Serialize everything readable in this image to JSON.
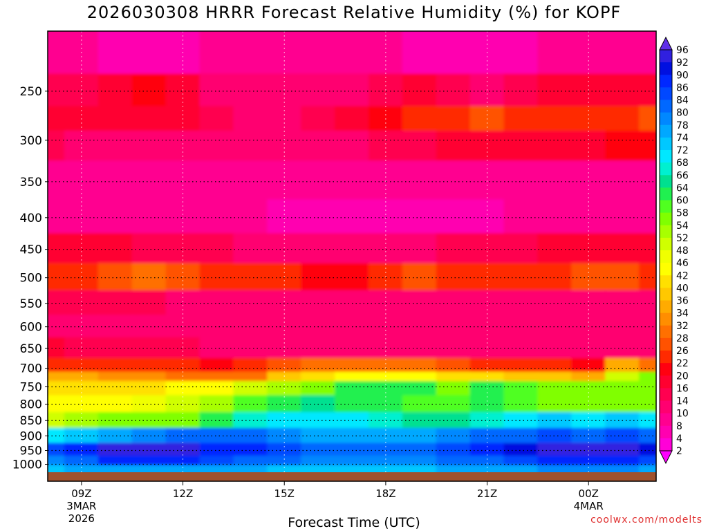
{
  "title": "2026030308 HRRR Forecast Relative Humidity (%) for KOPF",
  "credit": "coolwx.com/modelts",
  "chart_data": {
    "type": "heatmap",
    "title": "2026030308 HRRR Forecast Relative Humidity (%) for KOPF",
    "xlabel": "Forecast Time (UTC)",
    "ylabel": "",
    "x_ticks": [
      {
        "hour": 9,
        "label": "09Z",
        "sub1": "3MAR",
        "sub2": "2026"
      },
      {
        "hour": 12,
        "label": "12Z",
        "sub1": "",
        "sub2": ""
      },
      {
        "hour": 15,
        "label": "15Z",
        "sub1": "",
        "sub2": ""
      },
      {
        "hour": 18,
        "label": "18Z",
        "sub1": "",
        "sub2": ""
      },
      {
        "hour": 21,
        "label": "21Z",
        "sub1": "",
        "sub2": ""
      },
      {
        "hour": 24,
        "label": "00Z",
        "sub1": "4MAR",
        "sub2": ""
      }
    ],
    "xlim": [
      8.0,
      26.0
    ],
    "y_ticks": [
      250,
      300,
      350,
      400,
      450,
      500,
      550,
      600,
      650,
      700,
      750,
      800,
      850,
      900,
      950,
      1000
    ],
    "ylim_hPa": [
      1030,
      200
    ],
    "y_scale": "log-pressure",
    "grid": "dotted",
    "colorbar_ticks": [
      2,
      4,
      8,
      10,
      14,
      16,
      20,
      22,
      26,
      28,
      32,
      34,
      36,
      40,
      42,
      46,
      48,
      52,
      54,
      58,
      60,
      64,
      66,
      68,
      72,
      74,
      78,
      80,
      84,
      86,
      90,
      92,
      96
    ],
    "colorbar_colors": [
      "#ff00ff",
      "#ff00d8",
      "#ff00b0",
      "#ff0090",
      "#ff0070",
      "#ff0050",
      "#ff0030",
      "#ff0010",
      "#ff2a00",
      "#ff5200",
      "#ff7000",
      "#ff8e00",
      "#ffab00",
      "#ffc800",
      "#ffe000",
      "#ffff00",
      "#f0ff00",
      "#d0ff00",
      "#a8ff00",
      "#80ff00",
      "#50ff20",
      "#20f050",
      "#00e090",
      "#00f0d0",
      "#00e8ff",
      "#00c8ff",
      "#00a8ff",
      "#0088ff",
      "#0068ff",
      "#0048ff",
      "#0028ff",
      "#0010e0",
      "#3020e0",
      "#6030e8"
    ],
    "series_columns_hours": [
      8,
      9,
      10,
      11,
      12,
      13,
      14,
      15,
      16,
      17,
      18,
      19,
      20,
      21,
      22,
      23,
      24,
      25,
      26
    ],
    "series_rows_hPa": [
      220,
      250,
      280,
      300,
      350,
      400,
      450,
      500,
      550,
      600,
      650,
      700,
      720,
      750,
      800,
      850,
      900,
      950,
      990,
      1020
    ],
    "values": [
      [
        8,
        8,
        6,
        5,
        6,
        8,
        8,
        8,
        8,
        8,
        8,
        6,
        4,
        4,
        6,
        8,
        8,
        8,
        8
      ],
      [
        14,
        14,
        16,
        20,
        16,
        12,
        10,
        10,
        10,
        12,
        14,
        16,
        14,
        12,
        14,
        16,
        16,
        16,
        16
      ],
      [
        18,
        16,
        18,
        16,
        16,
        14,
        12,
        12,
        14,
        16,
        20,
        22,
        24,
        26,
        24,
        22,
        22,
        24,
        26
      ],
      [
        14,
        12,
        12,
        12,
        12,
        12,
        12,
        12,
        12,
        12,
        14,
        14,
        16,
        18,
        18,
        18,
        18,
        20,
        20
      ],
      [
        8,
        8,
        8,
        8,
        8,
        8,
        8,
        8,
        8,
        8,
        8,
        8,
        8,
        8,
        8,
        8,
        8,
        8,
        8
      ],
      [
        8,
        8,
        8,
        8,
        8,
        8,
        8,
        6,
        6,
        6,
        6,
        6,
        6,
        6,
        8,
        8,
        8,
        8,
        8
      ],
      [
        16,
        16,
        16,
        14,
        14,
        14,
        12,
        12,
        12,
        12,
        12,
        12,
        14,
        14,
        14,
        16,
        16,
        16,
        16
      ],
      [
        24,
        24,
        26,
        28,
        26,
        24,
        22,
        24,
        20,
        20,
        22,
        26,
        24,
        22,
        22,
        24,
        26,
        26,
        24
      ],
      [
        14,
        14,
        14,
        14,
        12,
        12,
        12,
        12,
        12,
        12,
        12,
        12,
        12,
        12,
        12,
        12,
        12,
        12,
        12
      ],
      [
        10,
        10,
        10,
        10,
        10,
        10,
        10,
        10,
        10,
        10,
        10,
        10,
        10,
        10,
        10,
        10,
        10,
        10,
        10
      ],
      [
        16,
        14,
        14,
        14,
        14,
        12,
        12,
        12,
        12,
        12,
        12,
        12,
        12,
        12,
        12,
        12,
        12,
        12,
        12
      ],
      [
        24,
        22,
        22,
        24,
        22,
        20,
        22,
        26,
        28,
        28,
        28,
        28,
        26,
        24,
        22,
        22,
        20,
        34,
        28
      ],
      [
        34,
        34,
        32,
        32,
        30,
        28,
        30,
        36,
        40,
        42,
        44,
        42,
        40,
        40,
        38,
        38,
        34,
        48,
        56
      ],
      [
        40,
        40,
        40,
        40,
        42,
        44,
        48,
        52,
        56,
        60,
        62,
        60,
        56,
        60,
        58,
        56,
        54,
        56,
        56
      ],
      [
        42,
        42,
        44,
        46,
        50,
        52,
        58,
        62,
        64,
        60,
        60,
        58,
        58,
        60,
        58,
        56,
        54,
        56,
        54
      ],
      [
        50,
        52,
        54,
        54,
        56,
        60,
        66,
        68,
        70,
        68,
        66,
        64,
        64,
        66,
        70,
        72,
        70,
        72,
        70
      ],
      [
        70,
        72,
        76,
        78,
        80,
        80,
        80,
        78,
        76,
        76,
        76,
        76,
        78,
        80,
        82,
        84,
        82,
        84,
        82
      ],
      [
        84,
        88,
        92,
        92,
        92,
        88,
        86,
        84,
        82,
        82,
        80,
        82,
        84,
        86,
        90,
        92,
        94,
        94,
        90
      ],
      [
        78,
        82,
        86,
        86,
        86,
        84,
        82,
        80,
        78,
        78,
        78,
        78,
        80,
        82,
        84,
        86,
        88,
        88,
        84
      ],
      [
        72,
        74,
        74,
        76,
        76,
        76,
        74,
        72,
        72,
        72,
        72,
        72,
        74,
        76,
        76,
        78,
        78,
        78,
        76
      ]
    ]
  }
}
